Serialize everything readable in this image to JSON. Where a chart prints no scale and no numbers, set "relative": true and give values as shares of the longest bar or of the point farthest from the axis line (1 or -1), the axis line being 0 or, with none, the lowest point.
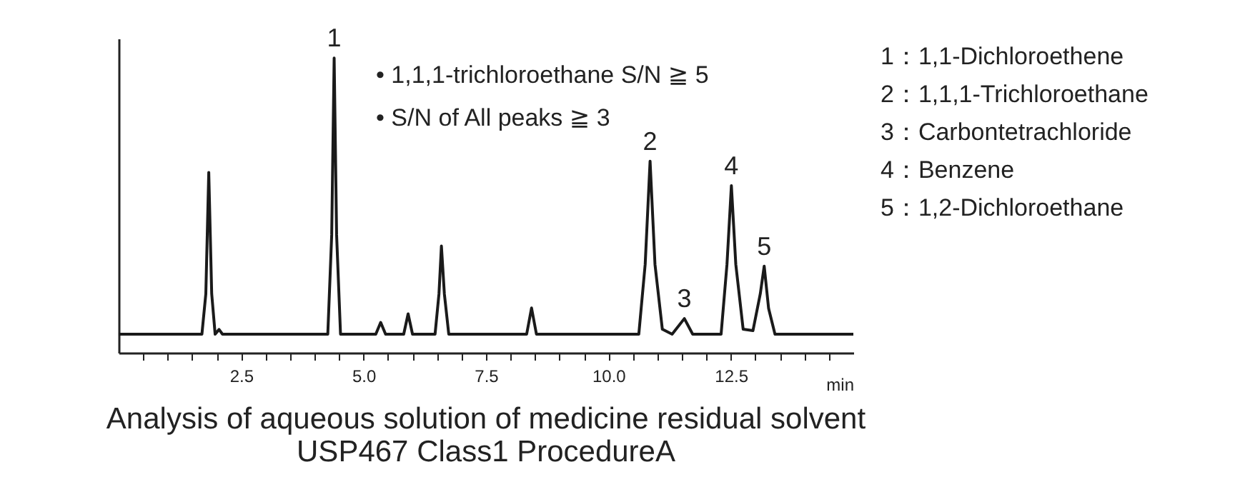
{
  "chart_data": {
    "type": "line",
    "relative": true,
    "color": "#1a1a1a",
    "title": "Analysis of aqueous solution of medicine residual solvent",
    "subtitle": "USP467 Class1 ProcedureA",
    "xlabel": "min",
    "xlim": [
      0,
      15
    ],
    "xticks": [
      {
        "value": 0.5,
        "label": null
      },
      {
        "value": 1,
        "label": null
      },
      {
        "value": 1.5,
        "label": null
      },
      {
        "value": 2,
        "label": null
      },
      "2.5",
      {
        "value": 3,
        "label": null
      },
      {
        "value": 3.5,
        "label": null
      },
      {
        "value": 4,
        "label": null
      },
      {
        "value": 4.5,
        "label": null
      },
      {
        "value": 5,
        "label": "5.0"
      },
      {
        "value": 5.5,
        "label": null
      },
      {
        "value": 6,
        "label": null
      },
      {
        "value": 6.5,
        "label": null
      },
      {
        "value": 7,
        "label": null
      },
      7.5,
      {
        "value": 8,
        "label": null
      },
      {
        "value": 8.5,
        "label": null
      },
      {
        "value": 9,
        "label": null
      },
      {
        "value": 9.5,
        "label": null
      },
      {
        "value": 10,
        "label": "10.0"
      },
      {
        "value": 10.5,
        "label": null
      },
      {
        "value": 11,
        "label": null
      },
      {
        "value": 11.5,
        "label": null
      },
      {
        "value": 12,
        "label": null
      },
      12.5,
      {
        "value": 13,
        "label": null
      },
      {
        "value": 13.5,
        "label": null
      },
      {
        "value": 14,
        "label": null
      },
      {
        "value": 14.5,
        "label": null
      }
    ],
    "x": [
      0,
      1.7,
      1.78,
      1.84,
      1.9,
      1.97,
      2.05,
      2.12,
      4.27,
      4.35,
      4.4,
      4.45,
      4.53,
      5.25,
      5.35,
      5.45,
      5.82,
      5.91,
      6.0,
      6.46,
      6.54,
      6.59,
      6.65,
      6.74,
      8.33,
      8.43,
      8.53,
      10.62,
      10.75,
      10.85,
      10.95,
      11.1,
      11.3,
      11.55,
      11.72,
      12.3,
      12.42,
      12.51,
      12.6,
      12.75,
      12.95,
      13.1,
      13.18,
      13.27,
      13.4,
      15
    ],
    "values": [
      0.063,
      0.063,
      0.2,
      0.612,
      0.2,
      0.063,
      0.079,
      0.063,
      0.063,
      0.4,
      1.0,
      0.4,
      0.063,
      0.063,
      0.103,
      0.063,
      0.063,
      0.132,
      0.063,
      0.063,
      0.2,
      0.362,
      0.2,
      0.063,
      0.063,
      0.152,
      0.063,
      0.063,
      0.3,
      0.65,
      0.3,
      0.08,
      0.063,
      0.116,
      0.063,
      0.063,
      0.3,
      0.567,
      0.3,
      0.08,
      0.075,
      0.2,
      0.294,
      0.15,
      0.063,
      0.063
    ],
    "annotations": [
      {
        "text": "1",
        "x": 4.4,
        "y": 1.0
      },
      {
        "text": "2",
        "x": 10.85,
        "y": 0.65
      },
      {
        "text": "3",
        "x": 11.55,
        "y": 0.116
      },
      {
        "text": "4",
        "x": 12.51,
        "y": 0.567
      },
      {
        "text": "5",
        "x": 13.18,
        "y": 0.294
      },
      "• 1,1,1-trichloroethane S/N ≧ 5",
      "• S/N of All peaks ≧ 3",
      "1：1,1-Dichloroethene",
      "2：1,1,1-Trichloroethane",
      "3：Carbontetrachloride",
      "4：Benzene",
      "5：1,2-Dichloroethane"
    ]
  }
}
